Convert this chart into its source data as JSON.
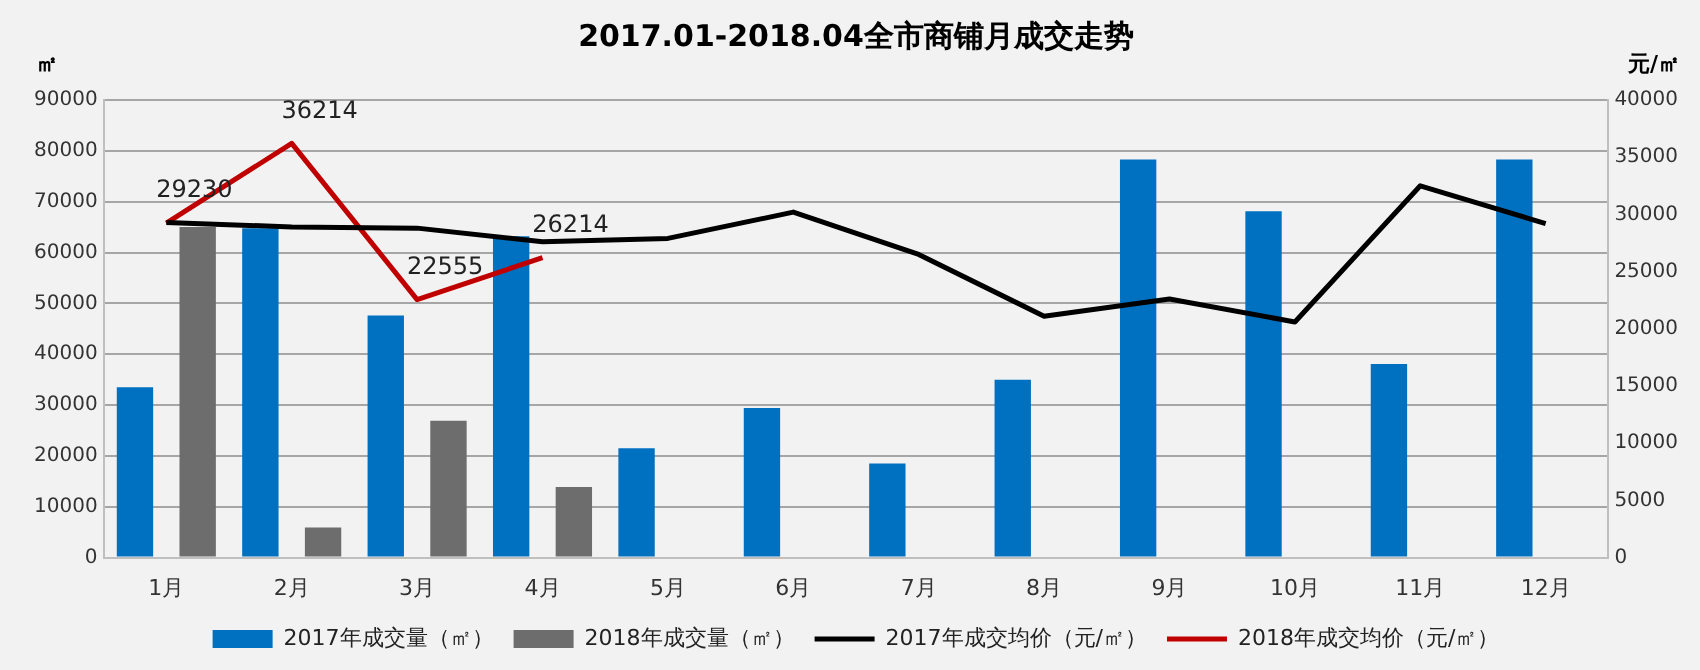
{
  "chart_data": {
    "type": "bar",
    "title": "2017.01-2018.04全市商铺月成交走势",
    "ylabel": "㎡",
    "y2label": "元/㎡",
    "categories": [
      "1月",
      "2月",
      "3月",
      "4月",
      "5月",
      "6月",
      "7月",
      "8月",
      "9月",
      "10月",
      "11月",
      "12月"
    ],
    "series": [
      {
        "name": "2017年成交量（㎡）",
        "color": "#0070c0",
        "values": [
          33500,
          64800,
          47600,
          63200,
          21500,
          29400,
          18500,
          35000,
          78300,
          68100,
          38100,
          78300
        ]
      },
      {
        "name": "2018年成交量（㎡）",
        "color": "#6d6d6d",
        "values": [
          65000,
          5900,
          26900,
          13900,
          null,
          null,
          null,
          null,
          null,
          null,
          null,
          null
        ]
      },
      {
        "name": "2017年成交均价（元/㎡）",
        "type": "line",
        "axis": "y2",
        "color": "#000000",
        "values": [
          29300,
          28900,
          28800,
          27600,
          27900,
          30200,
          26500,
          21100,
          22600,
          20600,
          32500,
          29200
        ]
      },
      {
        "name": "2018年成交均价（元/㎡）",
        "type": "line",
        "axis": "y2",
        "color": "#c00000",
        "values": [
          29230,
          36214,
          22555,
          26214,
          null,
          null,
          null,
          null,
          null,
          null,
          null,
          null
        ],
        "value_labels": [
          "29230",
          "36214",
          "22555",
          "26214",
          null,
          null,
          null,
          null,
          null,
          null,
          null,
          null
        ]
      }
    ],
    "ylim": [
      0,
      90000
    ],
    "yticks": [
      0,
      10000,
      20000,
      30000,
      40000,
      50000,
      60000,
      70000,
      80000,
      90000
    ],
    "y2lim": [
      0,
      40000
    ],
    "y2ticks": [
      0,
      5000,
      10000,
      15000,
      20000,
      25000,
      30000,
      35000,
      40000
    ],
    "grid": "y",
    "legend": "bottom",
    "marker": "none",
    "line_style": "solid"
  }
}
